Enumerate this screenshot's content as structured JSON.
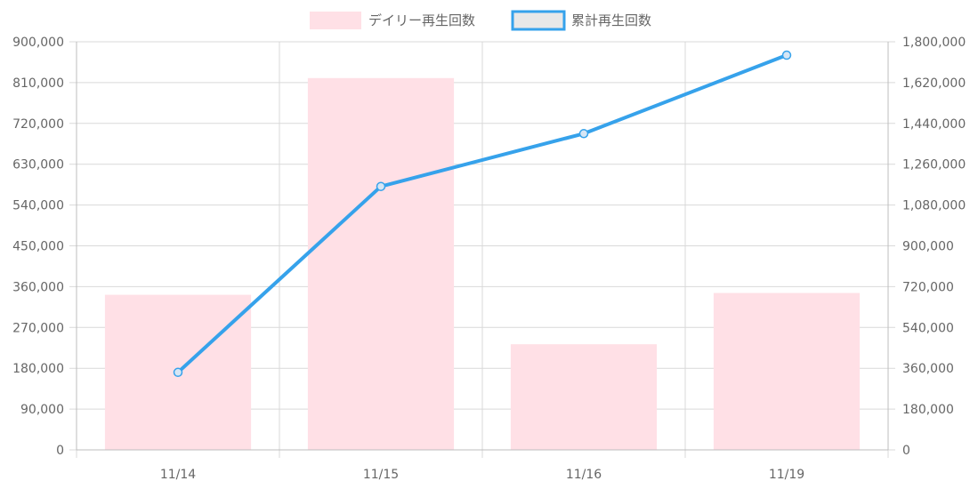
{
  "chart_data": {
    "type": "bar",
    "categories": [
      "11/14",
      "11/15",
      "11/16",
      "11/19"
    ],
    "series": [
      {
        "name": "デイリー再生回数",
        "type": "bar",
        "axis": "left",
        "values": [
          342000,
          820000,
          233000,
          346000
        ],
        "color": "#ffe0e6"
      },
      {
        "name": "累計再生回数",
        "type": "line",
        "axis": "right",
        "values": [
          342000,
          1162000,
          1395000,
          1741000
        ],
        "color": "#36a2eb"
      }
    ],
    "y_left": {
      "min": 0,
      "max": 900000,
      "ticks": [
        "0",
        "90,000",
        "180,000",
        "270,000",
        "360,000",
        "450,000",
        "540,000",
        "630,000",
        "720,000",
        "810,000",
        "900,000"
      ]
    },
    "y_right": {
      "min": 0,
      "max": 1800000,
      "ticks": [
        "0",
        "180,000",
        "360,000",
        "540,000",
        "720,000",
        "900,000",
        "1,080,000",
        "1,260,000",
        "1,440,000",
        "1,620,000",
        "1,800,000"
      ]
    },
    "grid": true,
    "legend_position": "top"
  }
}
